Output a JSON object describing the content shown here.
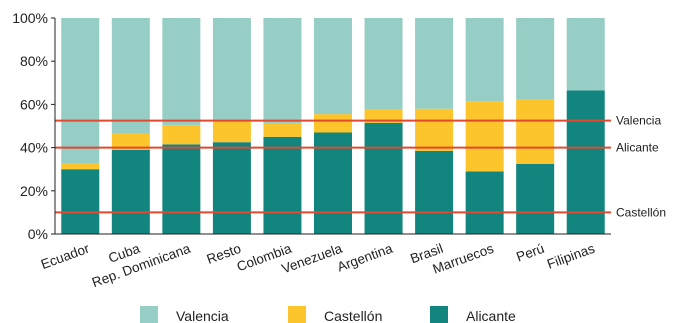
{
  "chart_data": {
    "type": "bar",
    "stacked": true,
    "categories": [
      "Ecuador",
      "Cuba",
      "Rep. Dominicana",
      "Resto",
      "Colombia",
      "Venezuela",
      "Argentina",
      "Brasil",
      "Marruecos",
      "Perú",
      "Filipinas"
    ],
    "series": [
      {
        "name": "Alicante",
        "color": "#12857f",
        "values": [
          30,
          39,
          41.5,
          42.5,
          45,
          47,
          51.5,
          38.5,
          29,
          32.5,
          66.5
        ]
      },
      {
        "name": "Castellón",
        "color": "#fcc52b",
        "values": [
          2.5,
          7.5,
          9,
          10,
          6,
          8.5,
          6,
          19.5,
          32.5,
          30,
          0
        ]
      },
      {
        "name": "Valencia",
        "color": "#96cdc5",
        "values": [
          67.5,
          53.5,
          49.5,
          47.5,
          49,
          44.5,
          42.5,
          42,
          38.5,
          37.5,
          33.5
        ]
      }
    ],
    "ylim": [
      0,
      100
    ],
    "yticks": [
      "0%",
      "20%",
      "40%",
      "60%",
      "80%",
      "100%"
    ],
    "reference_lines": [
      {
        "label": "Valencia",
        "value": 52.5,
        "color": "#e2492f"
      },
      {
        "label": "Alicante",
        "value": 40,
        "color": "#e2492f"
      },
      {
        "label": "Castellón",
        "value": 10,
        "color": "#e2492f"
      }
    ],
    "legend": [
      "Valencia",
      "Castellón",
      "Alicante"
    ],
    "legend_position": "bottom",
    "grid": false
  }
}
